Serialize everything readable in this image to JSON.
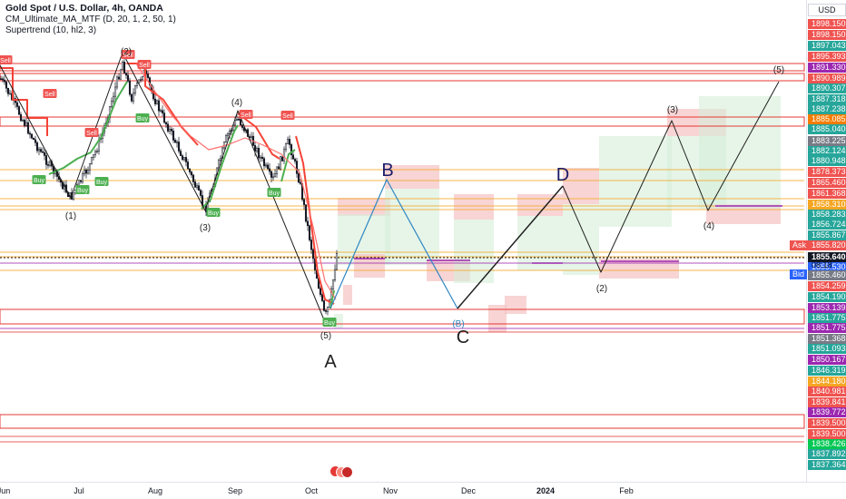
{
  "legend": {
    "title": "Gold Spot / U.S. Dollar, 4h, OANDA",
    "indicator1": "CM_Ultimate_MA_MTF (D, 20, 1, 2, 50, 1)",
    "indicator2": "Supertrend (10, hl2, 3)"
  },
  "currency": "USD",
  "side_labels": {
    "ask": "Ask",
    "bid": "Bid"
  },
  "countdown": "08:18",
  "colors": {
    "up": "#26a69a",
    "down": "#ef5350",
    "supertrend_up": "#4caf50",
    "supertrend_down": "#f44336",
    "wave": "#1f1f1f",
    "abc": "#2e86c1",
    "zone_red": "#f6c5c5",
    "zone_green": "#d6efd8",
    "line_orange": "#f5a623"
  },
  "chart_data": {
    "type": "line",
    "title": "Gold Spot / U.S. Dollar, 4h, OANDA",
    "xlabel": "",
    "ylabel": "",
    "x_ticks": [
      "Jun",
      "Jul",
      "Aug",
      "Sep",
      "Oct",
      "Nov",
      "Dec",
      "2024",
      "Feb"
    ],
    "price_labels": [
      {
        "value": "1898.150",
        "color": "#ef5350"
      },
      {
        "value": "1898.150",
        "color": "#ef5350"
      },
      {
        "value": "1897.043",
        "color": "#26a69a"
      },
      {
        "value": "1895.393",
        "color": "#ef5350"
      },
      {
        "value": "1891.330",
        "color": "#9c27b0"
      },
      {
        "value": "1890.989",
        "color": "#ef5350"
      },
      {
        "value": "1890.307",
        "color": "#26a69a"
      },
      {
        "value": "1887.318",
        "color": "#26a69a"
      },
      {
        "value": "1887.238",
        "color": "#26a69a"
      },
      {
        "value": "1885.085",
        "color": "#f57c00"
      },
      {
        "value": "1885.040",
        "color": "#26a69a"
      },
      {
        "value": "1883.225",
        "color": "#787b86"
      },
      {
        "value": "1882.124",
        "color": "#26a69a"
      },
      {
        "value": "1880.948",
        "color": "#26a69a"
      },
      {
        "value": "1878.373",
        "color": "#ef5350"
      },
      {
        "value": "1865.460",
        "color": "#ef5350"
      },
      {
        "value": "1861.368",
        "color": "#ef5350"
      },
      {
        "value": "1858.310",
        "color": "#f5a623"
      },
      {
        "value": "1858.283",
        "color": "#26a69a"
      },
      {
        "value": "1856.724",
        "color": "#26a69a"
      },
      {
        "value": "1855.867",
        "color": "#26a69a"
      },
      {
        "value": "1855.820",
        "color": "#ef5350"
      },
      {
        "value": "1855.640",
        "color": "#131722"
      },
      {
        "value": "1855.530",
        "color": "#2962ff"
      },
      {
        "value": "1855.460",
        "color": "#787b86"
      },
      {
        "value": "1854.259",
        "color": "#ef5350"
      },
      {
        "value": "1854.190",
        "color": "#26a69a"
      },
      {
        "value": "1853.139",
        "color": "#9c27b0"
      },
      {
        "value": "1851.775",
        "color": "#26a69a"
      },
      {
        "value": "1851.775",
        "color": "#9c27b0"
      },
      {
        "value": "1851.368",
        "color": "#787b86"
      },
      {
        "value": "1851.093",
        "color": "#26a69a"
      },
      {
        "value": "1850.167",
        "color": "#9c27b0"
      },
      {
        "value": "1846.319",
        "color": "#26a69a"
      },
      {
        "value": "1844.180",
        "color": "#f5a623"
      },
      {
        "value": "1840.981",
        "color": "#ef5350"
      },
      {
        "value": "1839.841",
        "color": "#ef5350"
      },
      {
        "value": "1839.772",
        "color": "#9c27b0"
      },
      {
        "value": "1839.500",
        "color": "#ef5350"
      },
      {
        "value": "1839.500",
        "color": "#ef5350"
      },
      {
        "value": "1838.426",
        "color": "#00c853"
      },
      {
        "value": "1837.892",
        "color": "#26a69a"
      },
      {
        "value": "1837.364",
        "color": "#26a69a"
      }
    ],
    "wave_labels": [
      {
        "text": "(1)"
      },
      {
        "text": "(2)"
      },
      {
        "text": "(3)"
      },
      {
        "text": "(4)"
      },
      {
        "text": "(5)"
      },
      {
        "text": "A"
      },
      {
        "text": "B"
      },
      {
        "text": "C"
      },
      {
        "text": "D"
      },
      {
        "text": "(B)"
      },
      {
        "text": "(2)"
      },
      {
        "text": "(3)"
      },
      {
        "text": "(4)"
      },
      {
        "text": "(5)"
      }
    ],
    "signals": [
      {
        "text": "Sell"
      },
      {
        "text": "Sell"
      },
      {
        "text": "Sell"
      },
      {
        "text": "Sell"
      },
      {
        "text": "Sell"
      },
      {
        "text": "Sell"
      },
      {
        "text": "Sell"
      },
      {
        "text": "Buy"
      },
      {
        "text": "Buy"
      },
      {
        "text": "Buy"
      },
      {
        "text": "Buy"
      },
      {
        "text": "Buy"
      },
      {
        "text": "Buy"
      },
      {
        "text": "Buy"
      }
    ]
  }
}
